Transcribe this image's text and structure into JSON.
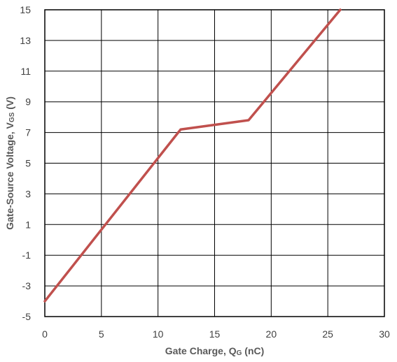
{
  "chart_data": {
    "type": "line",
    "xlabel": "Gate Charge, Q",
    "xlabel_sub": "G",
    "xlabel_suffix": " (nC)",
    "ylabel": "Gate-Source Voltage, V",
    "ylabel_sub": "GS",
    "ylabel_suffix": " (V)",
    "xlim": [
      0,
      30
    ],
    "ylim": [
      -5,
      15
    ],
    "x_ticks": [
      0,
      5,
      10,
      15,
      20,
      25,
      30
    ],
    "y_ticks": [
      -5,
      -3,
      -1,
      1,
      3,
      5,
      7,
      9,
      11,
      13,
      15
    ],
    "grid": true,
    "legend": "none",
    "series": [
      {
        "color": "#c0504d",
        "points": [
          [
            0,
            -4
          ],
          [
            12,
            7.2
          ],
          [
            18,
            7.8
          ],
          [
            26.1,
            15
          ]
        ]
      }
    ]
  }
}
